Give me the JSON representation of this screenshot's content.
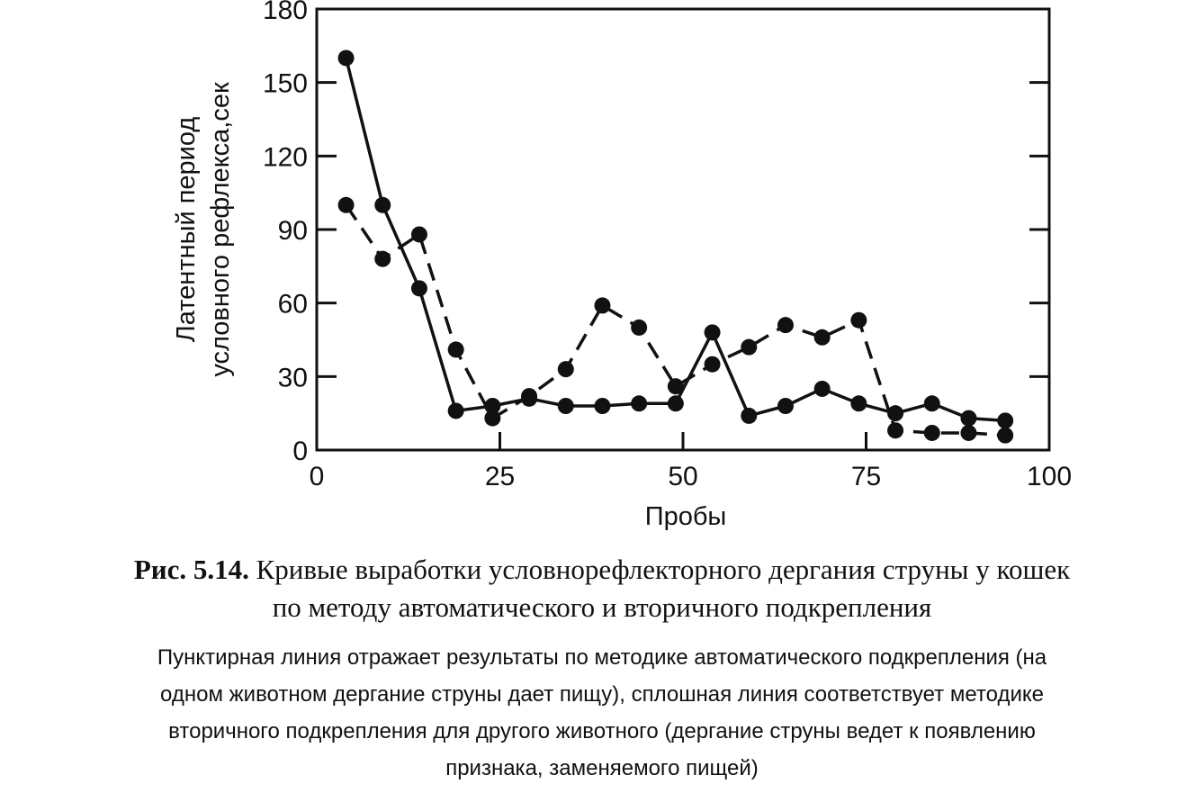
{
  "chart_data": {
    "type": "line",
    "title": "",
    "xlabel": "Пробы",
    "ylabel_lines": [
      "Латентный период",
      "условного рефлекса,сек"
    ],
    "xlim": [
      0,
      100
    ],
    "ylim": [
      0,
      180
    ],
    "x_ticks": [
      0,
      25,
      50,
      75,
      100
    ],
    "y_ticks": [
      0,
      30,
      60,
      90,
      120,
      150,
      180
    ],
    "grid": false,
    "legend": "none",
    "series": [
      {
        "style": "dashed",
        "color": "#111111",
        "points": [
          [
            4,
            100
          ],
          [
            9,
            78
          ],
          [
            14,
            88
          ],
          [
            19,
            41
          ],
          [
            24,
            13
          ],
          [
            29,
            22
          ],
          [
            34,
            33
          ],
          [
            39,
            59
          ],
          [
            44,
            50
          ],
          [
            49,
            26
          ],
          [
            54,
            35
          ],
          [
            59,
            42
          ],
          [
            64,
            51
          ],
          [
            69,
            46
          ],
          [
            74,
            53
          ],
          [
            79,
            8
          ],
          [
            84,
            7
          ],
          [
            89,
            7
          ],
          [
            94,
            6
          ]
        ]
      },
      {
        "style": "solid",
        "color": "#111111",
        "points": [
          [
            4,
            160
          ],
          [
            9,
            100
          ],
          [
            14,
            66
          ],
          [
            19,
            16
          ],
          [
            24,
            18
          ],
          [
            29,
            21
          ],
          [
            34,
            18
          ],
          [
            39,
            18
          ],
          [
            44,
            19
          ],
          [
            49,
            19
          ],
          [
            54,
            48
          ],
          [
            59,
            14
          ],
          [
            64,
            18
          ],
          [
            69,
            25
          ],
          [
            74,
            19
          ],
          [
            79,
            15
          ],
          [
            84,
            19
          ],
          [
            89,
            13
          ],
          [
            94,
            12
          ]
        ]
      }
    ]
  },
  "caption": {
    "label": "Рис. 5.14.",
    "title_line1": "Кривые выработки условнорефлекторного дергания струны у кошек",
    "title_line2": "по методу автоматического и вторичного подкрепления",
    "note_lines": [
      "Пунктирная линия отражает результаты по методике автоматического подкрепления (на",
      "одном животном дергание струны дает пищу), сплошная линия соответствует методике",
      "вторичного подкрепления для другого животного (дергание струны ведет к появлению",
      "признака, заменяемого пищей)"
    ]
  }
}
